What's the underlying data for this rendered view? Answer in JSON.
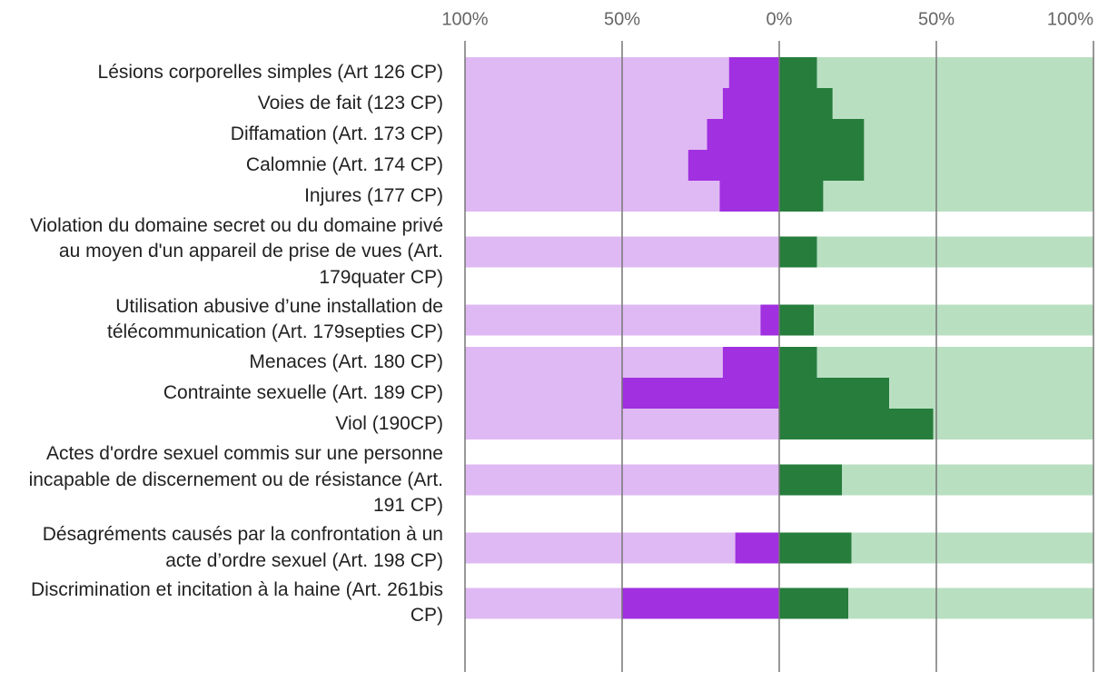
{
  "chart_data": {
    "type": "diverging-bar",
    "categories": [
      "Lésions corporelles simples (Art 126 CP)",
      "Voies de fait (123 CP)",
      "Diffamation (Art. 173 CP)",
      "Calomnie (Art. 174 CP)",
      "Injures (177 CP)",
      "Violation du domaine secret ou du domaine privé au moyen d'un appareil de prise de vues (Art. 179quater CP)",
      "Utilisation abusive d’une installation de télécommunication (Art. 179septies CP)",
      "Menaces (Art. 180 CP)",
      "Contrainte sexuelle (Art. 189 CP)",
      "Viol (190CP)",
      "Actes d'ordre sexuel commis sur une personne incapable de discernement ou de résistance (Art. 191 CP)",
      "Désagréments causés par la confrontation à un acte d’ordre sexuel (Art. 198 CP)",
      "Discrimination et incitation à la haine (Art. 261bis CP)"
    ],
    "series": [
      {
        "color": "#a030e0",
        "values": [
          -16,
          -18,
          -23,
          -29,
          -19,
          0,
          -6,
          -18,
          -50,
          0,
          0,
          -14,
          -50
        ]
      },
      {
        "color": "#dfb9f3",
        "values": [
          -84,
          -82,
          -77,
          -71,
          -81,
          -100,
          -94,
          -82,
          -50,
          -100,
          -100,
          -86,
          -50
        ]
      },
      {
        "color": "#267d3c",
        "values": [
          12,
          17,
          27,
          27,
          14,
          12,
          11,
          12,
          35,
          49,
          20,
          23,
          22
        ]
      },
      {
        "color": "#b9dfc1",
        "values": [
          88,
          83,
          73,
          73,
          86,
          88,
          89,
          88,
          65,
          51,
          80,
          77,
          78
        ]
      }
    ],
    "xlim": [
      -100,
      100
    ],
    "xticks": [
      {
        "value": -100,
        "label": "100%"
      },
      {
        "value": -50,
        "label": "50%"
      },
      {
        "value": 0,
        "label": "0%"
      },
      {
        "value": 50,
        "label": "50%"
      },
      {
        "value": 100,
        "label": "100%"
      }
    ],
    "grid": true
  }
}
